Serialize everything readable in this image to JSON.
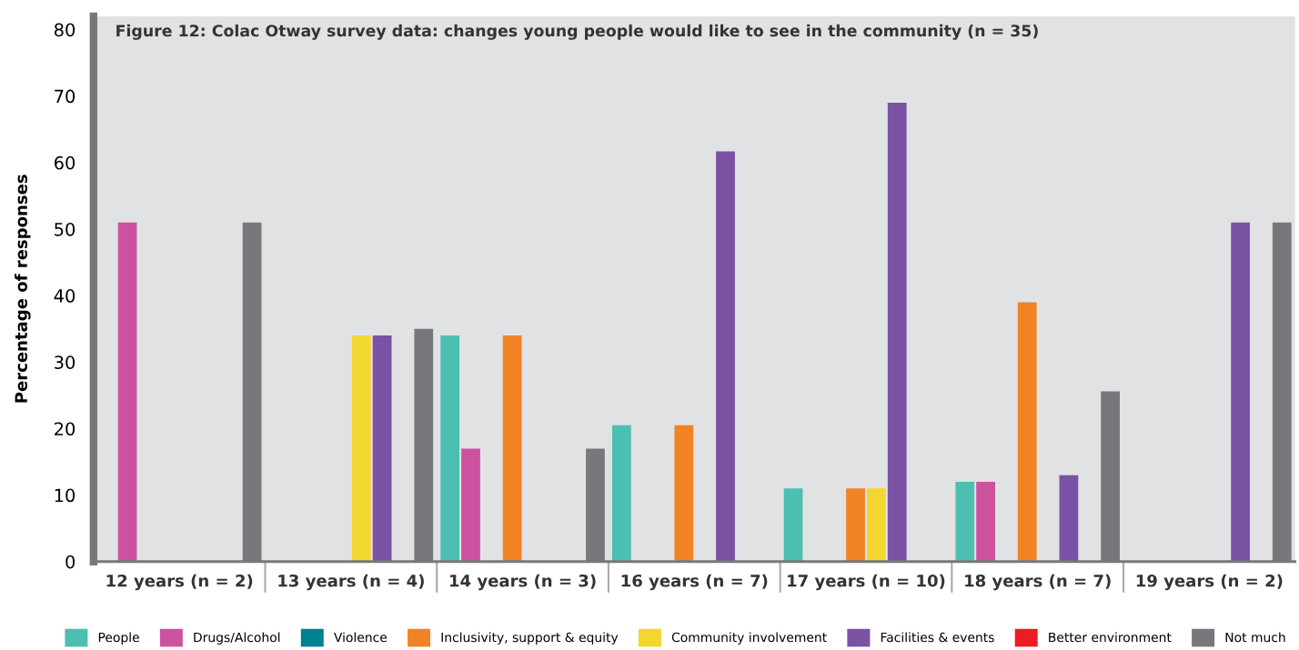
{
  "chart_data": {
    "type": "bar",
    "title": "Figure 12: Colac Otway survey data: changes young people would like to see in the community (n = 35)",
    "ylabel": "Percentage of responses",
    "categories": [
      "12 years (n = 2)",
      "13 years (n = 4)",
      "14 years (n = 3)",
      "16 years (n = 7)",
      "17 years (n = 10)",
      "18 years (n = 7)",
      "19 years (n = 2)"
    ],
    "series": [
      {
        "name": "People",
        "color": "#4dbfb0",
        "values": [
          0,
          0,
          34,
          20.5,
          11,
          12,
          0
        ]
      },
      {
        "name": "Drugs/Alcohol",
        "color": "#cc52a0",
        "values": [
          51,
          0,
          17,
          0,
          0,
          12,
          0
        ]
      },
      {
        "name": "Violence",
        "color": "#00818f",
        "values": [
          0,
          0,
          0,
          0,
          0,
          0,
          0
        ]
      },
      {
        "name": "Inclusivity, support & equity",
        "color": "#f28325",
        "values": [
          0,
          0,
          34,
          20.5,
          11,
          39,
          0
        ]
      },
      {
        "name": "Community involvement",
        "color": "#f4d631",
        "values": [
          0,
          34,
          0,
          0,
          11,
          0,
          0
        ]
      },
      {
        "name": "Facilities & events",
        "color": "#7a52a3",
        "values": [
          0,
          34,
          0,
          61.7,
          69,
          13,
          51
        ]
      },
      {
        "name": "Better environment",
        "color": "#ed1c24",
        "values": [
          0,
          0,
          0,
          0,
          0,
          0,
          0
        ]
      },
      {
        "name": "Not much",
        "color": "#77787b",
        "values": [
          51,
          35,
          17,
          0,
          0,
          25.6,
          51
        ]
      }
    ],
    "ylim": [
      0,
      82
    ],
    "yticks": [
      0,
      10,
      20,
      30,
      40,
      50,
      60,
      70,
      80
    ],
    "grid": false,
    "legend": "bottom"
  }
}
